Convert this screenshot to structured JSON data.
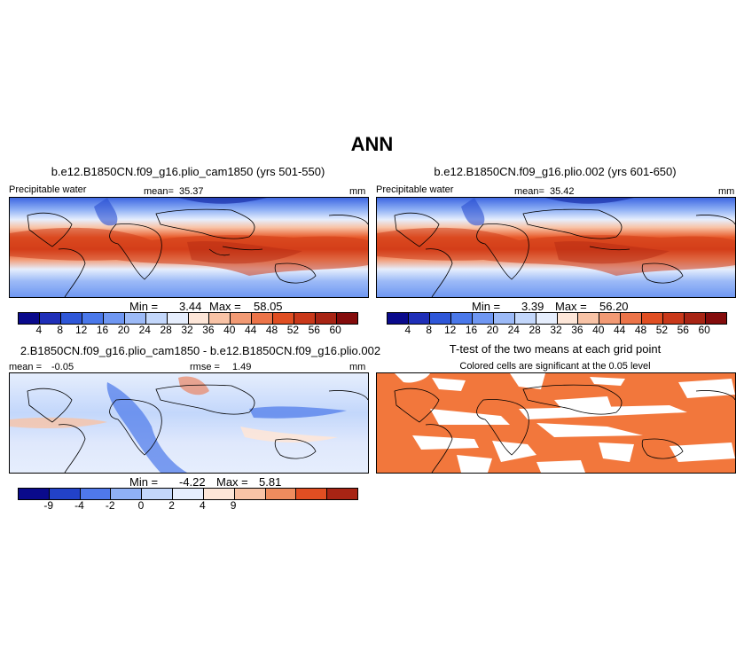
{
  "title": "ANN",
  "panels": {
    "p1": {
      "title": "b.e12.B1850CN.f09_g16.plio_cam1850 (yrs 501-550)",
      "variable": "Precipitable water",
      "mean_label": "mean=",
      "mean_value": "35.37",
      "units": "mm",
      "min_label": "Min =",
      "min_value": "3.44",
      "max_label": "Max =",
      "max_value": "58.05"
    },
    "p2": {
      "title": "b.e12.B1850CN.f09_g16.plio.002 (yrs 601-650)",
      "variable": "Precipitable water",
      "mean_label": "mean=",
      "mean_value": "35.42",
      "units": "mm",
      "min_label": "Min =",
      "min_value": "3.39",
      "max_label": "Max =",
      "max_value": "56.20"
    },
    "p3": {
      "title": "2.B1850CN.f09_g16.plio_cam1850 - b.e12.B1850CN.f09_g16.plio.002",
      "mean_label": "mean =",
      "mean_value": "-0.05",
      "rmse_label": "rmse =",
      "rmse_value": "1.49",
      "units": "mm",
      "min_label": "Min =",
      "min_value": "-4.22",
      "max_label": "Max =",
      "max_value": "5.81"
    },
    "p4": {
      "title": "T-test of the two means at each grid point",
      "subtitle": "Colored cells are significant at the 0.05 level"
    }
  },
  "colorbars": {
    "abs": {
      "ticks": [
        "4",
        "8",
        "12",
        "16",
        "20",
        "24",
        "28",
        "32",
        "36",
        "40",
        "44",
        "48",
        "52",
        "56",
        "60"
      ],
      "colors": [
        "#0a0a8c",
        "#1f2fb8",
        "#2f57d8",
        "#4a78ea",
        "#6f97f2",
        "#9cbaf7",
        "#c3d7fb",
        "#e6eefd",
        "#fde6d8",
        "#f8c3a6",
        "#f29a74",
        "#ec7449",
        "#e04e22",
        "#c9381a",
        "#a82414",
        "#840c0c"
      ]
    },
    "diff": {
      "ticks": [
        "-9",
        "-4",
        "-2",
        "0",
        "2",
        "4",
        "9"
      ],
      "colors": [
        "#0a0a8c",
        "#2242c8",
        "#4f78ea",
        "#8fb0f5",
        "#c3d7fb",
        "#e6eefd",
        "#fde6d8",
        "#f8c3a6",
        "#ee8c5e",
        "#e04e22",
        "#a82414"
      ]
    }
  },
  "colors": {
    "significant": "#f2773c",
    "land_outline": "#000000"
  }
}
